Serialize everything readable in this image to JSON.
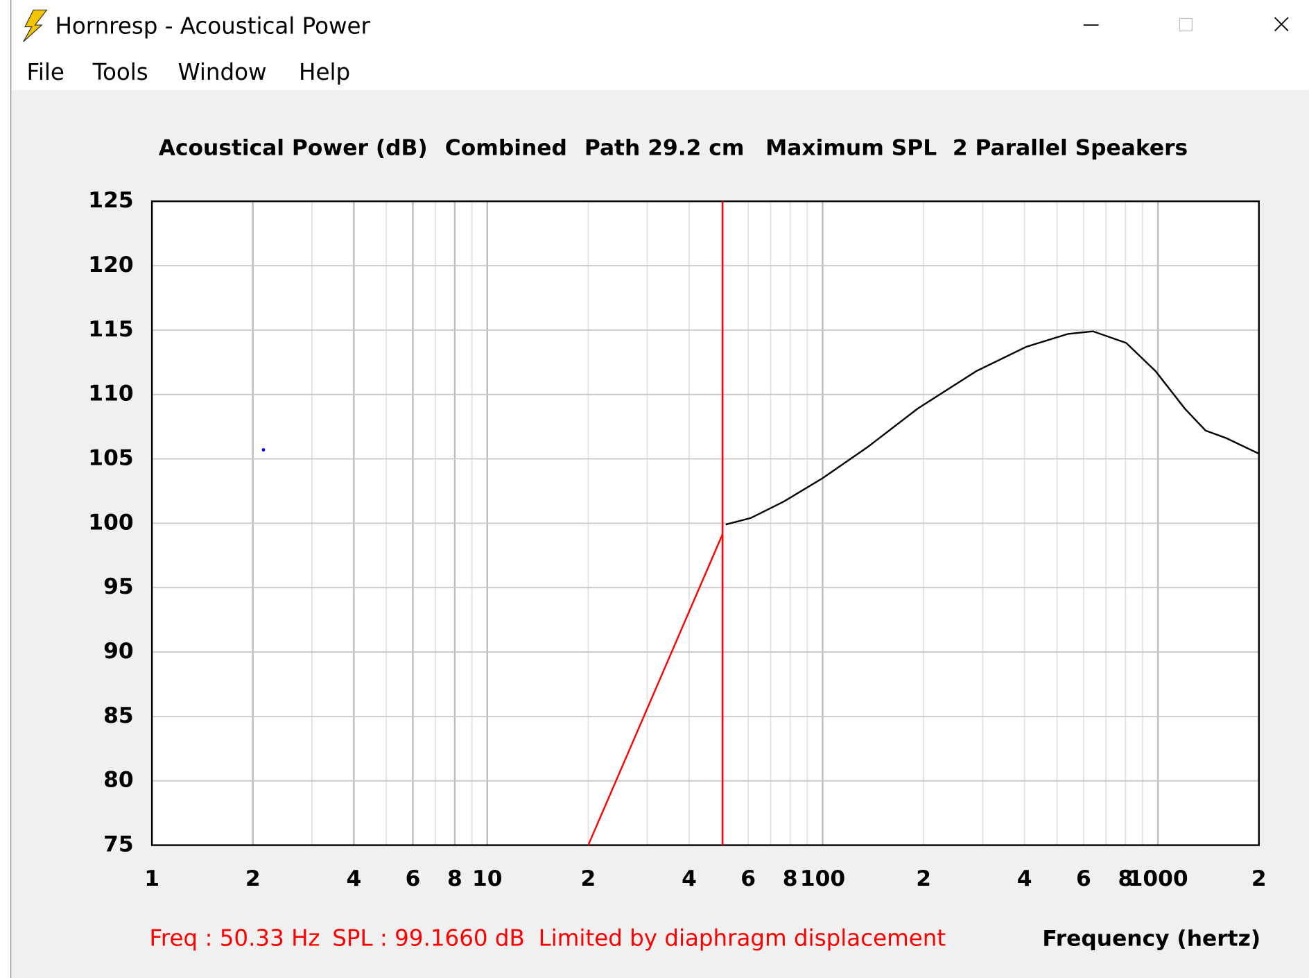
{
  "window": {
    "title": "Hornresp - Acoustical Power",
    "menu": [
      "File",
      "Tools",
      "Window",
      "Help"
    ]
  },
  "chart_data": {
    "type": "line",
    "title": [
      "Acoustical Power (dB)",
      "Combined",
      "Path 29.2 cm",
      "Maximum SPL",
      "2 Parallel Speakers"
    ],
    "xlabel": "Frequency (hertz)",
    "log_x": true,
    "xlim": [
      1,
      2000
    ],
    "xticks": [
      1,
      2,
      4,
      6,
      8,
      10,
      {
        "value": 20,
        "label": "2"
      },
      {
        "value": 40,
        "label": "4"
      },
      {
        "value": 60,
        "label": "6"
      },
      {
        "value": 80,
        "label": "8"
      },
      100,
      {
        "value": 200,
        "label": "2"
      },
      {
        "value": 400,
        "label": "4"
      },
      {
        "value": 600,
        "label": "6"
      },
      {
        "value": 800,
        "label": "8"
      },
      1000,
      {
        "value": 2000,
        "label": "2"
      }
    ],
    "xgrid_minor": [
      3,
      5,
      7,
      9,
      30,
      50,
      70,
      90,
      300,
      500,
      700,
      900
    ],
    "ylim": [
      75,
      125
    ],
    "yticks": [
      75,
      80,
      85,
      90,
      95,
      100,
      105,
      110,
      115,
      120,
      125
    ],
    "grid": true,
    "series": [
      {
        "color": "#000000",
        "x": [
          51.4,
          61,
          76.8,
          100,
          136,
          192,
          287,
          405,
          539,
          640,
          804,
          984,
          1203,
          1387,
          1600,
          2000
        ],
        "values": [
          99.9,
          100.4,
          101.7,
          103.5,
          105.9,
          108.9,
          111.8,
          113.7,
          114.7,
          114.9,
          114.0,
          111.8,
          108.9,
          107.2,
          106.6,
          105.4
        ]
      },
      {
        "color": "#ff0000",
        "x": [
          20,
          50.33
        ],
        "values": [
          75,
          99.166
        ]
      }
    ],
    "points": [
      {
        "x": 2.15,
        "y": 105.7,
        "color": "#0000ff"
      }
    ],
    "cursor": {
      "x": 50.33,
      "color": "#ff0000"
    },
    "status": [
      "Freq : 50.33 Hz",
      "SPL : 99.1660 dB",
      "Limited by diaphragm displacement"
    ]
  }
}
